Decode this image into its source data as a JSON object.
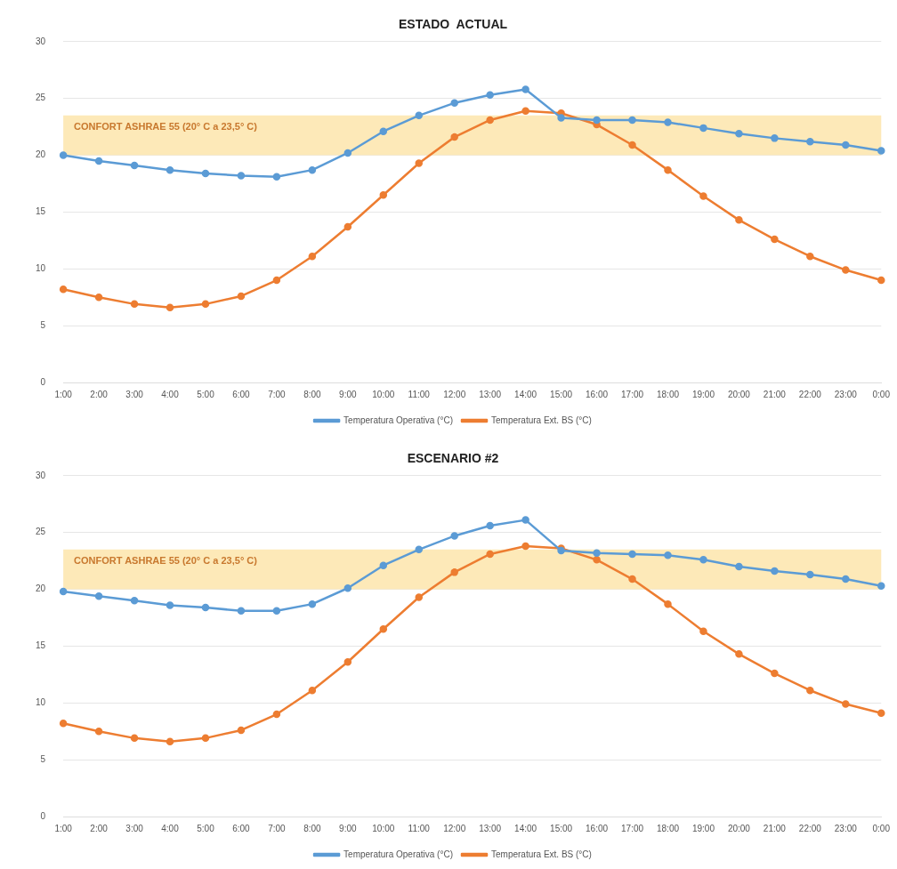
{
  "chart_data": [
    {
      "type": "line",
      "title": "ESTADO  ACTUAL",
      "categories": [
        "1:00",
        "2:00",
        "3:00",
        "4:00",
        "5:00",
        "6:00",
        "7:00",
        "8:00",
        "9:00",
        "10:00",
        "11:00",
        "12:00",
        "13:00",
        "14:00",
        "15:00",
        "16:00",
        "17:00",
        "18:00",
        "19:00",
        "20:00",
        "21:00",
        "22:00",
        "23:00",
        "0:00"
      ],
      "series": [
        {
          "name": "Temperatura Operativa (°C)",
          "color": "#5b9bd5",
          "values": [
            20.0,
            19.5,
            19.1,
            18.7,
            18.4,
            18.2,
            18.1,
            18.7,
            20.2,
            22.1,
            23.5,
            24.6,
            25.3,
            25.8,
            23.3,
            23.1,
            23.1,
            22.9,
            22.4,
            21.9,
            21.5,
            21.2,
            20.9,
            20.4
          ]
        },
        {
          "name": "Temperatura Ext. BS (°C)",
          "color": "#ed7d31",
          "values": [
            8.2,
            7.5,
            6.9,
            6.6,
            6.9,
            7.6,
            9.0,
            11.1,
            13.7,
            16.5,
            19.3,
            21.6,
            23.1,
            23.9,
            23.7,
            22.7,
            20.9,
            18.7,
            16.4,
            14.3,
            12.6,
            11.1,
            9.9,
            9.0
          ]
        }
      ],
      "ylim": [
        0,
        30
      ],
      "yticks": [
        0,
        5,
        10,
        15,
        20,
        25,
        30
      ],
      "grid": "y",
      "legend": "bottom",
      "marker": "circle",
      "line_style": "solid",
      "bands": [
        {
          "axis": "y",
          "from": 20,
          "to": 23.5,
          "label": "CONFORT ASHRAE 55 (20° C a 23,5° C)",
          "color": "#fde9b8"
        }
      ]
    },
    {
      "type": "line",
      "title": "ESCENARIO #2",
      "categories": [
        "1:00",
        "2:00",
        "3:00",
        "4:00",
        "5:00",
        "6:00",
        "7:00",
        "8:00",
        "9:00",
        "10:00",
        "11:00",
        "12:00",
        "13:00",
        "14:00",
        "15:00",
        "16:00",
        "17:00",
        "18:00",
        "19:00",
        "20:00",
        "21:00",
        "22:00",
        "23:00",
        "0:00"
      ],
      "series": [
        {
          "name": "Temperatura Operativa (°C)",
          "color": "#5b9bd5",
          "values": [
            19.8,
            19.4,
            19.0,
            18.6,
            18.4,
            18.1,
            18.1,
            18.7,
            20.1,
            22.1,
            23.5,
            24.7,
            25.6,
            26.1,
            23.4,
            23.2,
            23.1,
            23.0,
            22.6,
            22.0,
            21.6,
            21.3,
            20.9,
            20.3
          ]
        },
        {
          "name": "Temperatura Ext. BS (°C)",
          "color": "#ed7d31",
          "values": [
            8.2,
            7.5,
            6.9,
            6.6,
            6.9,
            7.6,
            9.0,
            11.1,
            13.6,
            16.5,
            19.3,
            21.5,
            23.1,
            23.8,
            23.6,
            22.6,
            20.9,
            18.7,
            16.3,
            14.3,
            12.6,
            11.1,
            9.9,
            9.1
          ]
        }
      ],
      "ylim": [
        0,
        30
      ],
      "yticks": [
        0,
        5,
        10,
        15,
        20,
        25,
        30
      ],
      "grid": "y",
      "legend": "bottom",
      "marker": "circle",
      "line_style": "solid",
      "bands": [
        {
          "axis": "y",
          "from": 20,
          "to": 23.5,
          "label": "CONFORT ASHRAE 55 (20° C a 23,5° C)",
          "color": "#fde9b8"
        }
      ]
    }
  ]
}
